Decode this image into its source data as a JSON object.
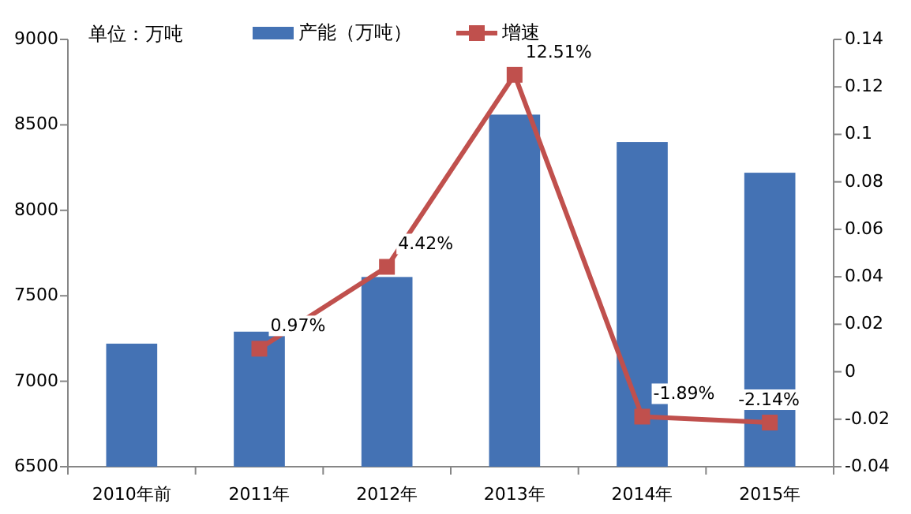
{
  "chart_data": {
    "type": "bar",
    "categories": [
      "2010年前",
      "2011年",
      "2012年",
      "2013年",
      "2014年",
      "2015年"
    ],
    "series": [
      {
        "name": "产能（万吨）",
        "color": "#4472b4",
        "values": [
          7220,
          7290,
          7610,
          8560,
          8400,
          8220
        ]
      },
      {
        "name": "增速",
        "type": "line",
        "axis": "y2",
        "color": "#c0504d",
        "marker": "square",
        "values": [
          null,
          0.0097,
          0.0442,
          0.1251,
          -0.0189,
          -0.0214
        ],
        "value_labels": [
          null,
          "0.97%",
          "4.42%",
          "12.51%",
          "-1.89%",
          "-2.14%"
        ]
      }
    ],
    "ylim": [
      6500,
      9000
    ],
    "yticks": [
      6500,
      7000,
      7500,
      8000,
      8500,
      9000
    ],
    "y2lim": [
      -0.04,
      0.14
    ],
    "y2ticks": [
      {
        "value": -0.04,
        "label": "-0.04"
      },
      {
        "value": -0.02,
        "label": "-0.02"
      },
      {
        "value": 0,
        "label": "0"
      },
      {
        "value": 0.02,
        "label": "0.02"
      },
      {
        "value": 0.04,
        "label": "0.04"
      },
      {
        "value": 0.06,
        "label": "0.06"
      },
      {
        "value": 0.08,
        "label": "0.08"
      },
      {
        "value": 0.1,
        "label": "0.1"
      },
      {
        "value": 0.12,
        "label": "0.12"
      },
      {
        "value": 0.14,
        "label": "0.14"
      }
    ],
    "legend": "top",
    "grid": false,
    "annotations": [
      "单位：万吨"
    ]
  }
}
